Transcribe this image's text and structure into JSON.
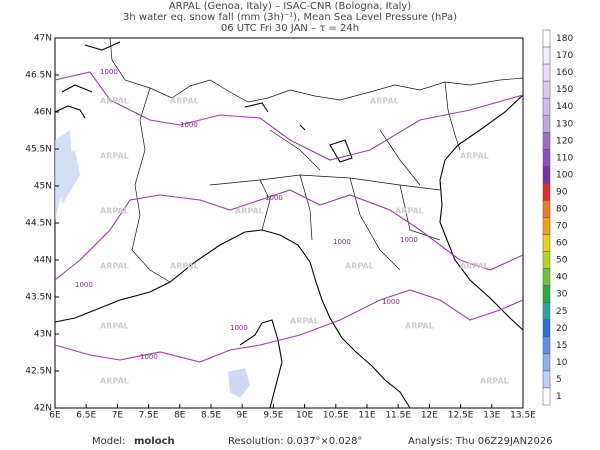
{
  "header": {
    "line1": "ARPAL (Genoa, Italy)  –  ISAC-CNR (Bologna, Italy)",
    "line2": "3h water eq. snow fall (mm (3h)⁻¹), Mean Sea Level Pressure (hPa)",
    "line3": "06 UTC Fri 30 JAN  –  τ = 24h"
  },
  "map": {
    "lon_labels": [
      "6E",
      "6.5E",
      "7E",
      "7.5E",
      "8E",
      "8.5E",
      "9E",
      "9.5E",
      "10E",
      "10.5E",
      "11E",
      "11.5E",
      "12E",
      "12.5E",
      "13E",
      "13.5E"
    ],
    "lat_labels": [
      "42N",
      "42.5N",
      "43N",
      "43.5N",
      "44N",
      "44.5N",
      "45N",
      "45.5N",
      "46N",
      "46.5N",
      "47N"
    ],
    "isobar_label": "1000",
    "watermark": "ARPAL"
  },
  "colorbar": {
    "levels": [
      180,
      170,
      160,
      150,
      140,
      130,
      120,
      110,
      100,
      90,
      80,
      70,
      60,
      50,
      40,
      30,
      25,
      20,
      15,
      10,
      5,
      1
    ],
    "colors": [
      "#ffffff",
      "#f4eef8",
      "#e8ddf2",
      "#dccbec",
      "#cfbbe5",
      "#c2a6de",
      "#9e6cc8",
      "#8a4fbe",
      "#7a30a8",
      "#e03030",
      "#f07a20",
      "#f0a020",
      "#e8d020",
      "#b8d030",
      "#70c040",
      "#30a840",
      "#30a0a0",
      "#3070d0",
      "#6090e0",
      "#90b0ec",
      "#c0d0f4",
      "#ffffff"
    ]
  },
  "footer": {
    "model_label": "Model:",
    "model": "moloch",
    "resolution": "Resolution: 0.037°×0.028°",
    "analysis": "Analysis: Thu 06Z29JAN2026"
  }
}
